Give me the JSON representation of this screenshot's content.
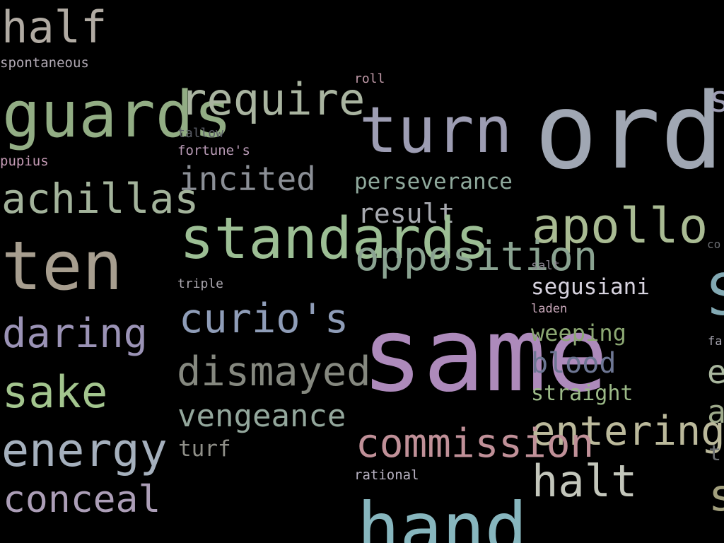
{
  "words": [
    {
      "text": "half",
      "color": "#b1aba3"
    },
    {
      "text": "spontaneous",
      "color": "#b1a9b4"
    },
    {
      "text": "roll",
      "color": "#c09aa8"
    },
    {
      "text": "guards",
      "color": "#92ad84"
    },
    {
      "text": "require",
      "color": "#a9b4a0"
    },
    {
      "text": "turn",
      "color": "#9d9db3"
    },
    {
      "text": "ord",
      "color": "#a0a7b3"
    },
    {
      "text": "s",
      "color": "#9d9db3"
    },
    {
      "text": "tallow",
      "color": "#5a5d66"
    },
    {
      "text": "fortune's",
      "color": "#b89ab5"
    },
    {
      "text": "pupius",
      "color": "#c59bb5"
    },
    {
      "text": "incited",
      "color": "#8b8f96"
    },
    {
      "text": "perseverance",
      "color": "#8fa99c"
    },
    {
      "text": "achillas",
      "color": "#a3b39b"
    },
    {
      "text": "result",
      "color": "#a8aab0"
    },
    {
      "text": "standards",
      "color": "#9cbe94"
    },
    {
      "text": "apollo",
      "color": "#a9bb93"
    },
    {
      "text": "opposition",
      "color": "#8aa391"
    },
    {
      "text": "co",
      "color": "#6b6d72"
    },
    {
      "text": "ten",
      "color": "#a79e8f"
    },
    {
      "text": "salt",
      "color": "#8a8590"
    },
    {
      "text": "segusiani",
      "color": "#d7d3df"
    },
    {
      "text": "triple",
      "color": "#a9a5ad"
    },
    {
      "text": "S",
      "color": "#83aab4"
    },
    {
      "text": "laden",
      "color": "#c8a7b9"
    },
    {
      "text": "curio's",
      "color": "#8f9db8"
    },
    {
      "text": "daring",
      "color": "#9b93b6"
    },
    {
      "text": "same",
      "color": "#ad8abb"
    },
    {
      "text": "weeping",
      "color": "#8ca873"
    },
    {
      "text": "fa",
      "color": "#a8a6b1"
    },
    {
      "text": "blood",
      "color": "#6d7693"
    },
    {
      "text": "e",
      "color": "#a9b79e"
    },
    {
      "text": "dismayed",
      "color": "#85887f"
    },
    {
      "text": "sake",
      "color": "#a3c58e"
    },
    {
      "text": "straight",
      "color": "#9cba88"
    },
    {
      "text": "vengeance",
      "color": "#93a79c"
    },
    {
      "text": "a",
      "color": "#9ca889"
    },
    {
      "text": "entering",
      "color": "#bbb99b"
    },
    {
      "text": "energy",
      "color": "#a5b0bd"
    },
    {
      "text": "turf",
      "color": "#8f8f88"
    },
    {
      "text": "commission",
      "color": "#c09098"
    },
    {
      "text": "t",
      "color": "#6c6f73"
    },
    {
      "text": "rational",
      "color": "#b7b1c1"
    },
    {
      "text": "halt",
      "color": "#c3c6bb"
    },
    {
      "text": "conceal",
      "color": "#ac9eb7"
    },
    {
      "text": "s",
      "color": "#a3a07e"
    },
    {
      "text": "hand",
      "color": "#87b6be"
    }
  ]
}
